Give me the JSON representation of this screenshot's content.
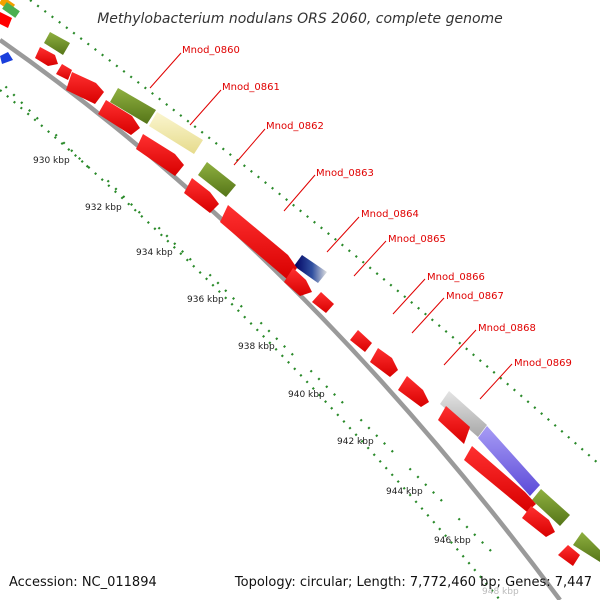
{
  "header": {
    "title": "Methylobacterium nodulans ORS 2060, complete genome"
  },
  "footer": {
    "accession": "Accession: NC_011894",
    "summary": "Topology: circular; Length: 7,772,460 bp; Genes: 7,447"
  },
  "ruler": {
    "ticks": [
      "930 kbp",
      "932 kbp",
      "934 kbp",
      "936 kbp",
      "938 kbp",
      "940 kbp",
      "942 kbp",
      "944 kbp",
      "946 kbp"
    ],
    "faded_tick": "948 kbp"
  },
  "genes": [
    {
      "label": "Mnod_0860"
    },
    {
      "label": "Mnod_0861"
    },
    {
      "label": "Mnod_0862"
    },
    {
      "label": "Mnod_0863"
    },
    {
      "label": "Mnod_0864"
    },
    {
      "label": "Mnod_0865"
    },
    {
      "label": "Mnod_0866"
    },
    {
      "label": "Mnod_0867"
    },
    {
      "label": "Mnod_0868"
    },
    {
      "label": "Mnod_0869"
    }
  ],
  "colors": {
    "cds": "#ff0000",
    "backbone": "#9a9a9a",
    "ruler_dots": "#2a8a2a",
    "cog_olive": "#6b8e23",
    "cog_khaki": "#f0e8a0",
    "cog_navy": "#000080",
    "cog_silver": "#c8c8c8",
    "cog_slate": "#7b68ee",
    "label_red": "#e00000"
  }
}
